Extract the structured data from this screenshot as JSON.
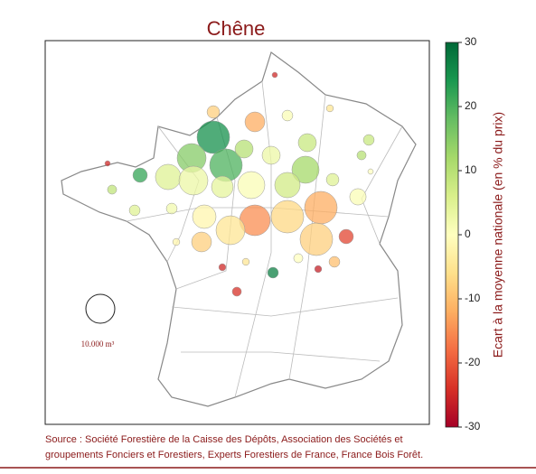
{
  "chart_data": {
    "type": "bubble_map",
    "title": "Chêne",
    "colorbar_label": "Ecart à la moyenne nationale (en % du prix)",
    "clim": [
      -30,
      30
    ],
    "cticks": [
      30,
      20,
      10,
      0,
      -10,
      -20,
      -30
    ],
    "size_legend": {
      "value": 10000,
      "label": "10.000 m³"
    },
    "source": [
      "Source : Société Forestière de la Caisse des Dépôts, Association des Sociétés et",
      "groupements Fonciers et Forestiers, Experts Forestiers de France, France Bois Forêt."
    ],
    "deviation": [
      25,
      20,
      15,
      10,
      5,
      3,
      4,
      1,
      3,
      12,
      7,
      8,
      -12,
      -7,
      -15,
      -5,
      -2,
      -8,
      -8,
      -12,
      -8,
      1,
      22,
      27,
      -22,
      1,
      8,
      10,
      2,
      5,
      9,
      -10,
      -24,
      -25,
      -26,
      -25,
      -25,
      5,
      0,
      -2,
      -5,
      -5,
      0
    ],
    "volume": [
      12700,
      12700,
      10000,
      3900,
      7700,
      10000,
      5600,
      8800,
      3900,
      8800,
      7700,
      3900,
      12700,
      12700,
      11300,
      10000,
      6600,
      12700,
      4700,
      4700,
      1900,
      1400,
      2500,
      1400,
      2500,
      3200,
      1400,
      1000,
      1400,
      1400,
      1000,
      1400,
      1000,
      600,
      600,
      350,
      350,
      1900,
      1000,
      600,
      600,
      600,
      350
    ]
  }
}
